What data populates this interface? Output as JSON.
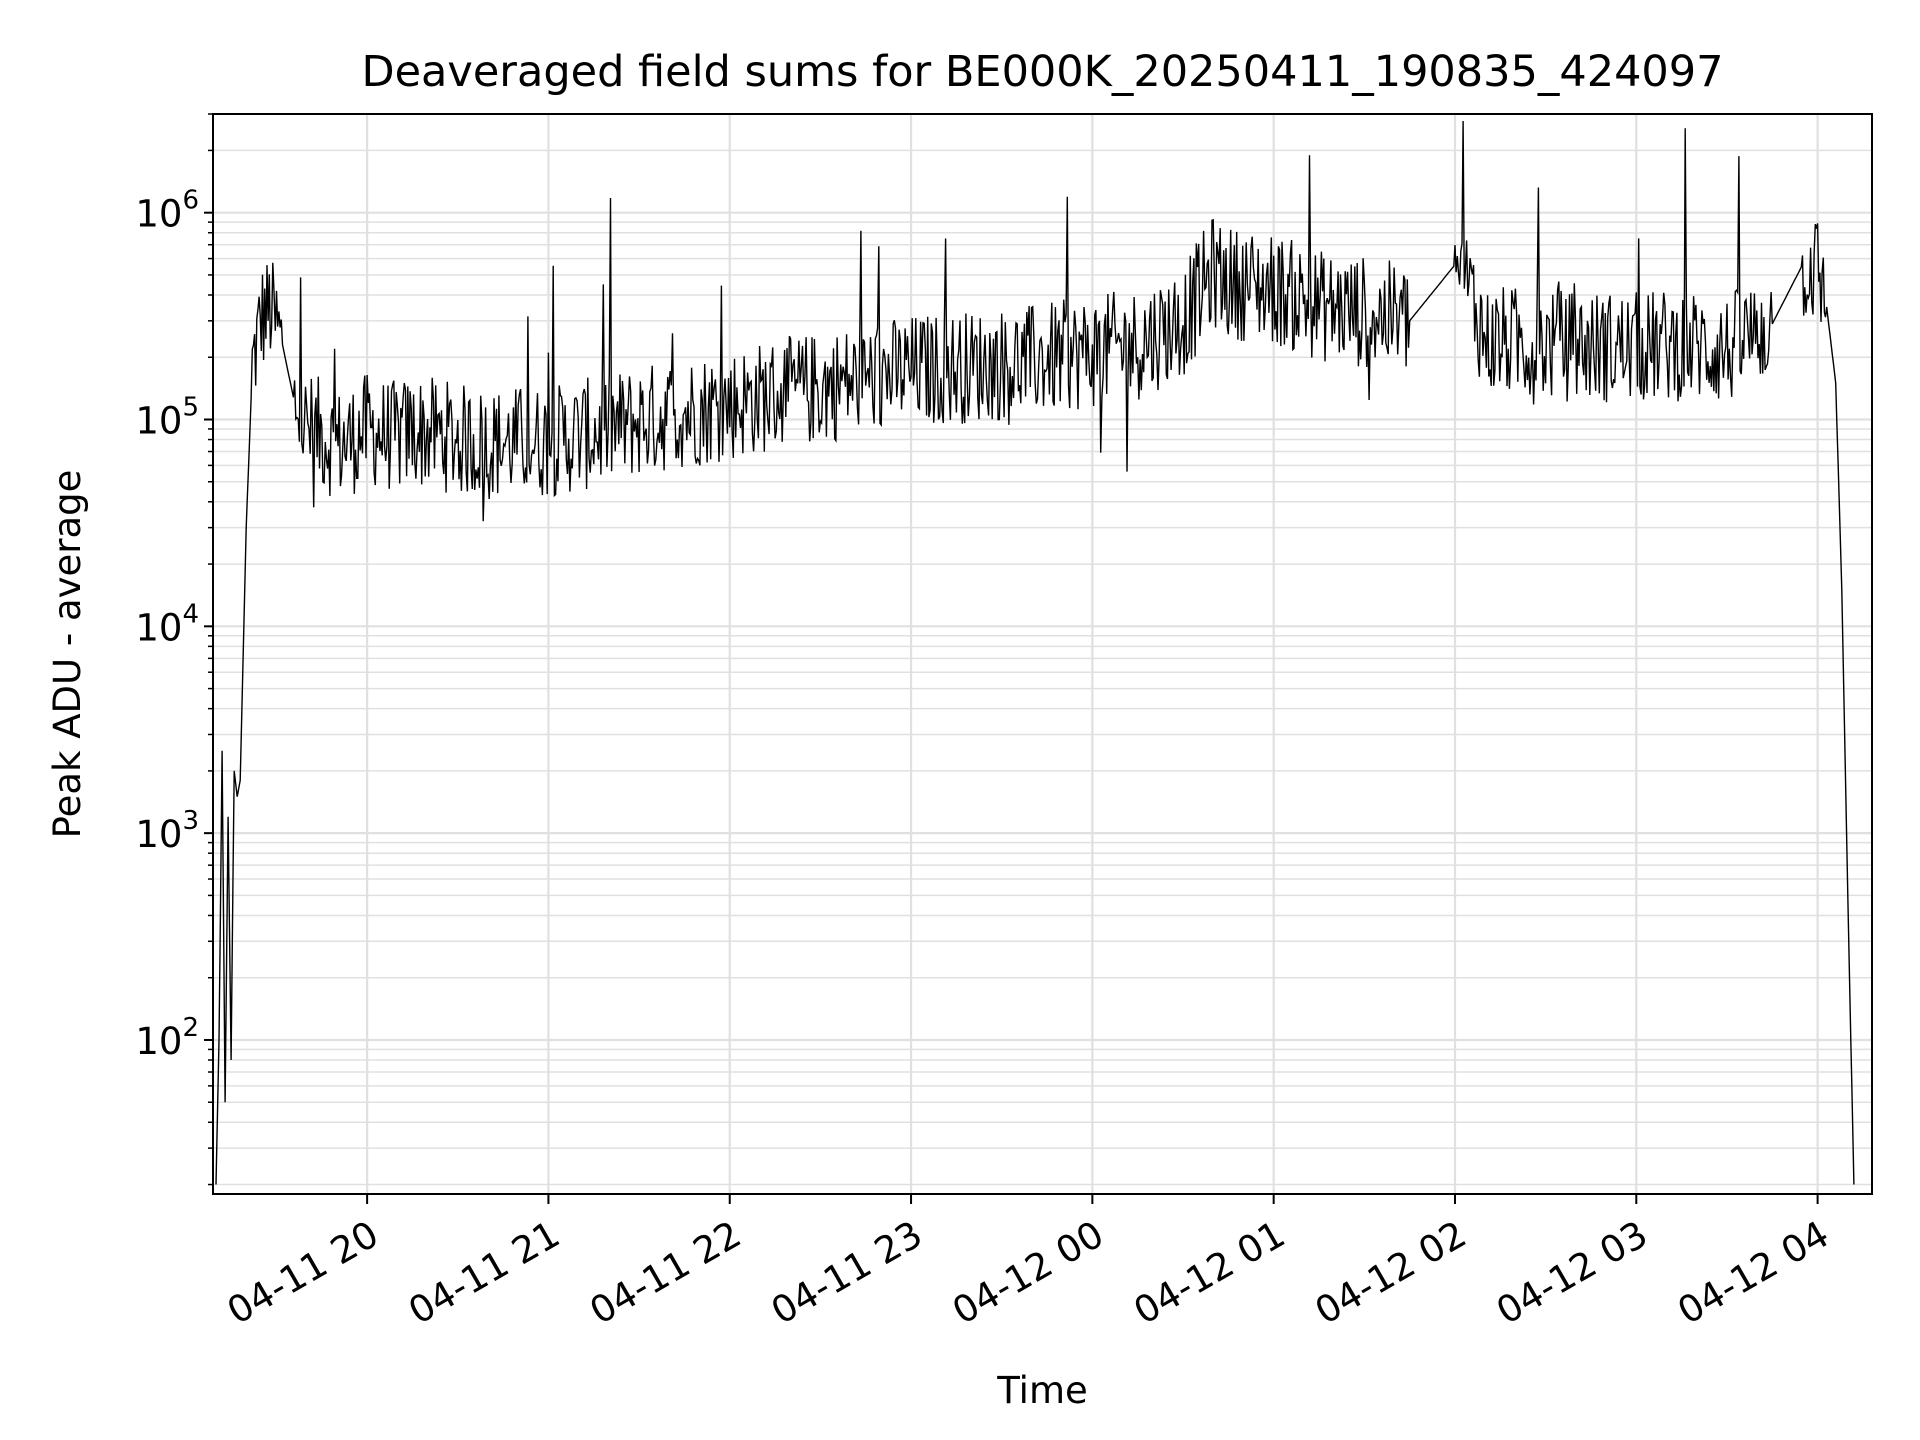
{
  "chart_data": {
    "type": "line",
    "title": "Deaveraged field sums for BE000K_20250411_190835_424097",
    "xlabel": "Time",
    "ylabel": "Peak ADU - average",
    "y_scale": "log",
    "ylim": [
      18,
      3000000
    ],
    "xlim": [
      "2025-04-11 19:09",
      "2025-04-12 04:18"
    ],
    "grid": true,
    "line_color": "#000000",
    "grid_color": "#e0e0e0",
    "x_ticks": [
      {
        "value": "2025-04-11 20:00",
        "label": "04-11 20"
      },
      {
        "value": "2025-04-11 21:00",
        "label": "04-11 21"
      },
      {
        "value": "2025-04-11 22:00",
        "label": "04-11 22"
      },
      {
        "value": "2025-04-11 23:00",
        "label": "04-11 23"
      },
      {
        "value": "2025-04-12 00:00",
        "label": "04-12 00"
      },
      {
        "value": "2025-04-12 01:00",
        "label": "04-12 01"
      },
      {
        "value": "2025-04-12 02:00",
        "label": "04-12 02"
      },
      {
        "value": "2025-04-12 03:00",
        "label": "04-12 03"
      },
      {
        "value": "2025-04-12 04:00",
        "label": "04-12 04"
      }
    ],
    "y_ticks": [
      {
        "value": 100,
        "base": "10",
        "exp": "2"
      },
      {
        "value": 1000,
        "base": "10",
        "exp": "3"
      },
      {
        "value": 10000,
        "base": "10",
        "exp": "4"
      },
      {
        "value": 100000,
        "base": "10",
        "exp": "5"
      },
      {
        "value": 1000000,
        "base": "10",
        "exp": "6"
      }
    ],
    "series": [
      {
        "x": [
          "2025-04-11 19:10",
          "2025-04-11 19:11",
          "2025-04-11 19:12",
          "2025-04-11 19:13",
          "2025-04-11 19:14",
          "2025-04-11 19:15",
          "2025-04-11 19:16",
          "2025-04-11 19:17",
          "2025-04-11 19:18",
          "2025-04-11 19:20",
          "2025-04-11 19:22",
          "2025-04-11 19:25",
          "2025-04-11 19:28",
          "2025-04-11 19:32",
          "2025-04-11 19:36",
          "2025-04-11 19:40",
          "2025-04-11 19:45",
          "2025-04-11 19:50",
          "2025-04-11 19:55",
          "2025-04-11 20:00",
          "2025-04-11 20:05",
          "2025-04-11 20:10",
          "2025-04-11 20:15",
          "2025-04-11 20:20",
          "2025-04-11 20:25",
          "2025-04-11 20:30",
          "2025-04-11 20:40",
          "2025-04-11 20:50",
          "2025-04-11 21:00",
          "2025-04-11 21:15",
          "2025-04-11 21:30",
          "2025-04-11 21:45",
          "2025-04-11 22:00",
          "2025-04-11 22:15",
          "2025-04-11 22:30",
          "2025-04-11 22:45",
          "2025-04-11 23:00",
          "2025-04-11 23:15",
          "2025-04-11 23:30",
          "2025-04-11 23:45",
          "2025-04-12 00:00",
          "2025-04-12 00:15",
          "2025-04-12 00:30",
          "2025-04-12 00:40",
          "2025-04-12 00:45",
          "2025-04-12 01:00",
          "2025-04-12 01:15",
          "2025-04-12 01:30",
          "2025-04-12 01:45",
          "2025-04-12 02:00",
          "2025-04-12 02:05",
          "2025-04-12 02:10",
          "2025-04-12 02:30",
          "2025-04-12 02:45",
          "2025-04-12 03:00",
          "2025-04-12 03:15",
          "2025-04-12 03:30",
          "2025-04-12 03:45",
          "2025-04-12 03:55",
          "2025-04-12 04:00",
          "2025-04-12 04:03",
          "2025-04-12 04:06",
          "2025-04-12 04:08",
          "2025-04-12 04:10",
          "2025-04-12 04:11",
          "2025-04-12 04:12"
        ],
        "y": [
          20,
          100,
          2500,
          50,
          1200,
          80,
          2000,
          1500,
          1800,
          30000,
          180000,
          310000,
          340000,
          230000,
          120000,
          90000,
          85000,
          75000,
          80000,
          90000,
          85000,
          82000,
          88000,
          86000,
          84000,
          80000,
          76000,
          78000,
          78000,
          86000,
          98000,
          108000,
          118000,
          132000,
          142000,
          158000,
          172000,
          178000,
          185000,
          196000,
          212000,
          232000,
          300000,
          520000,
          460000,
          430000,
          355000,
          330000,
          300000,
          560000,
          420000,
          240000,
          230000,
          225000,
          222000,
          230000,
          215000,
          290000,
          560000,
          530000,
          350000,
          150000,
          15000,
          500,
          100,
          20
        ]
      }
    ]
  }
}
